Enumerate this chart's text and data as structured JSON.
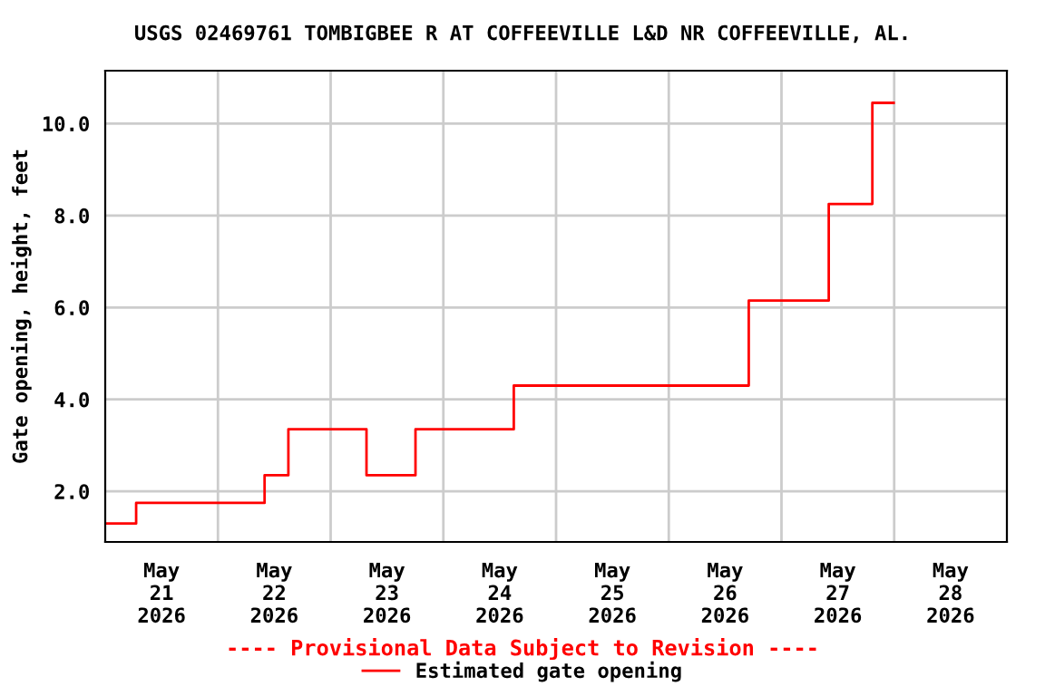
{
  "chart_data": {
    "type": "step",
    "title": "USGS 02469761 TOMBIGBEE R AT COFFEEVILLE L&D NR COFFEEVILLE, AL.",
    "ylabel": "Gate opening, height, feet",
    "annotations": [
      "---- Provisional Data Subject to Revision ----"
    ],
    "series": [
      {
        "name": "Estimated gate opening",
        "color": "#ff0000",
        "x": [
          "2026-05-21T00:00",
          "2026-05-21T06:35",
          "2026-05-22T09:56",
          "2026-05-22T15:00",
          "2026-05-23T07:38",
          "2026-05-23T18:04",
          "2026-05-24T15:00",
          "2026-05-26T17:02",
          "2026-05-27T10:04",
          "2026-05-27T19:21",
          "2026-05-27T23:53"
        ],
        "values": [
          1.3,
          1.75,
          2.35,
          3.35,
          2.35,
          3.35,
          4.3,
          6.15,
          8.25,
          10.45,
          10.45
        ]
      }
    ],
    "xlim": [
      "2026-05-21T00:00",
      "2026-05-29T00:00"
    ],
    "xticks": [
      {
        "value": "2026-05-21T12:00",
        "label": "May\n21\n2026"
      },
      {
        "value": "2026-05-22T12:00",
        "label": "May\n22\n2026"
      },
      {
        "value": "2026-05-23T12:00",
        "label": "May\n23\n2026"
      },
      {
        "value": "2026-05-24T12:00",
        "label": "May\n24\n2026"
      },
      {
        "value": "2026-05-25T12:00",
        "label": "May\n25\n2026"
      },
      {
        "value": "2026-05-26T12:00",
        "label": "May\n26\n2026"
      },
      {
        "value": "2026-05-27T12:00",
        "label": "May\n27\n2026"
      },
      {
        "value": "2026-05-28T12:00",
        "label": "May\n28\n2026"
      },
      {
        "value": "2026-05-22T00:00",
        "label": null
      },
      {
        "value": "2026-05-23T00:00",
        "label": null
      },
      {
        "value": "2026-05-24T00:00",
        "label": null
      },
      {
        "value": "2026-05-25T00:00",
        "label": null
      },
      {
        "value": "2026-05-26T00:00",
        "label": null
      },
      {
        "value": "2026-05-27T00:00",
        "label": null
      },
      {
        "value": "2026-05-28T00:00",
        "label": null
      }
    ],
    "ylim": [
      0.9,
      11.15
    ],
    "yticks": [
      {
        "value": 2,
        "label": "2.0"
      },
      {
        "value": 4,
        "label": "4.0"
      },
      {
        "value": 6,
        "label": "6.0"
      },
      {
        "value": 8,
        "label": "8.0"
      },
      {
        "value": 10,
        "label": "10.0"
      }
    ],
    "grid": true,
    "legend": "bottom",
    "line_style": "solid",
    "marker": "none"
  }
}
